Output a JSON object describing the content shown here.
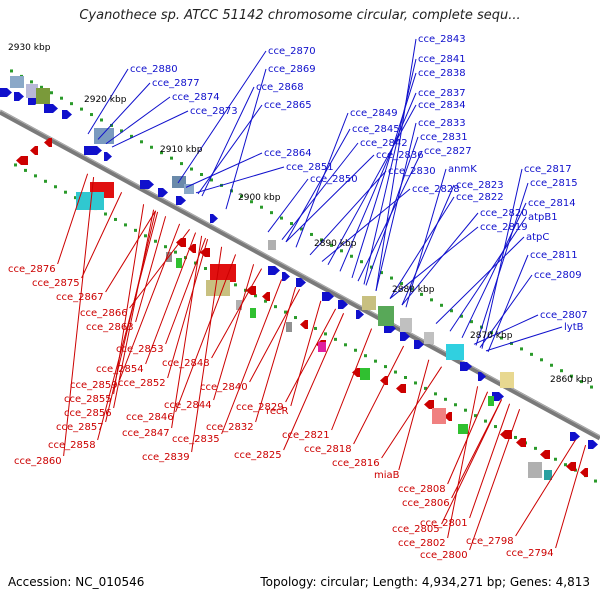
{
  "title": "Cyanothece sp. ATCC 51142 chromosome circular, complete sequ...",
  "footer": {
    "accession": "Accession: NC_010546",
    "summary": "Topology: circular; Length: 4,934,271 bp; Genes: 4,813"
  },
  "colors": {
    "forward": "#1010cc",
    "reverse": "#cc0000",
    "backbone": "#808080"
  },
  "kbp_labels": [
    {
      "text": "2930 kbp",
      "pos": 2930
    },
    {
      "text": "2920 kbp",
      "pos": 2920
    },
    {
      "text": "2910 kbp",
      "pos": 2910
    },
    {
      "text": "2900 kbp",
      "pos": 2900
    },
    {
      "text": "2890 kbp",
      "pos": 2890
    },
    {
      "text": "2880 kbp",
      "pos": 2880
    },
    {
      "text": "2870 kbp",
      "pos": 2870
    },
    {
      "text": "2860 kbp",
      "pos": 2860
    }
  ],
  "forward_labels": [
    "cce_2880",
    "cce_2877",
    "cce_2874",
    "cce_2873",
    "cce_2870",
    "cce_2869",
    "cce_2868",
    "cce_2865",
    "cce_2864",
    "cce_2851",
    "cce_2850",
    "cce_2849",
    "cce_2845",
    "cce_2842",
    "cce_2836",
    "cce_2843",
    "cce_2841",
    "cce_2838",
    "cce_2837",
    "cce_2834",
    "cce_2833",
    "cce_2831",
    "cce_2827",
    "cce_2830",
    "cce_2828",
    "anmK",
    "cce_2823",
    "cce_2822",
    "cce_2820",
    "cce_2819",
    "cce_2817",
    "cce_2815",
    "cce_2814",
    "atpB1",
    "atpC",
    "cce_2811",
    "cce_2809",
    "cce_2807",
    "lytB"
  ],
  "reverse_labels": [
    "cce_2876",
    "cce_2875",
    "cce_2867",
    "cce_2866",
    "cce_2863",
    "cce_2853",
    "cce_2854",
    "cce_2859",
    "cce_2855",
    "cce_2856",
    "cce_2857",
    "cce_2858",
    "cce_2860",
    "cce_2852",
    "cce_2848",
    "cce_2846",
    "cce_2847",
    "cce_2844",
    "cce_2840",
    "cce_2835",
    "cce_2839",
    "cce_2832",
    "cce_2829",
    "cce_2825",
    "recR",
    "cce_2821",
    "cce_2818",
    "cce_2816",
    "miaB",
    "cce_2808",
    "cce_2806",
    "cce_2805",
    "cce_2802",
    "cce_2801",
    "cce_2800",
    "cce_2798",
    "cce_2794"
  ]
}
